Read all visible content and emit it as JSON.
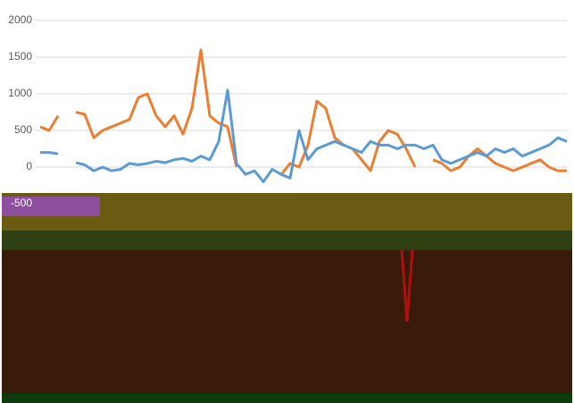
{
  "chart_data": {
    "type": "line",
    "categories": [
      null,
      null,
      null,
      null,
      null,
      null,
      null,
      null,
      null,
      null,
      null,
      null,
      null,
      null,
      null,
      null,
      null,
      null,
      null,
      null,
      null,
      null,
      null,
      null,
      null,
      null,
      null,
      null,
      null,
      null,
      null,
      null,
      null,
      null,
      null,
      null,
      null,
      null,
      null,
      null,
      null,
      null,
      null,
      null,
      null,
      null,
      null,
      null,
      null,
      null,
      null,
      null,
      null,
      null,
      null,
      null,
      null,
      null,
      null,
      null
    ],
    "series": [
      {
        "color": "#ed7d31",
        "values": [
          550,
          500,
          700,
          null,
          750,
          720,
          400,
          500,
          550,
          600,
          650,
          950,
          1000,
          700,
          550,
          700,
          450,
          800,
          1600,
          700,
          600,
          550,
          0,
          null,
          null,
          null,
          null,
          -100,
          50,
          0,
          300,
          900,
          800,
          400,
          300,
          250,
          100,
          -50,
          350,
          500,
          450,
          250,
          0,
          null,
          100,
          50,
          -50,
          0,
          150,
          250,
          150,
          50,
          0,
          -50,
          0,
          50,
          100,
          0,
          -50,
          -50
        ]
      },
      {
        "color": "#5b9bd5",
        "values": [
          200,
          200,
          180,
          null,
          60,
          30,
          -50,
          0,
          -50,
          -30,
          50,
          30,
          50,
          80,
          60,
          100,
          120,
          80,
          150,
          100,
          350,
          1050,
          50,
          -100,
          -50,
          -200,
          -30,
          -100,
          -150,
          500,
          100,
          250,
          300,
          350,
          300,
          250,
          200,
          350,
          300,
          300,
          250,
          300,
          300,
          250,
          300,
          100,
          50,
          100,
          150,
          200,
          150,
          250,
          200,
          250,
          150,
          200,
          250,
          300,
          400,
          350
        ]
      }
    ],
    "ylim": [
      -500,
      2000
    ],
    "yticks": [
      -500,
      0,
      500,
      1000,
      1500,
      2000
    ],
    "grid": true
  }
}
